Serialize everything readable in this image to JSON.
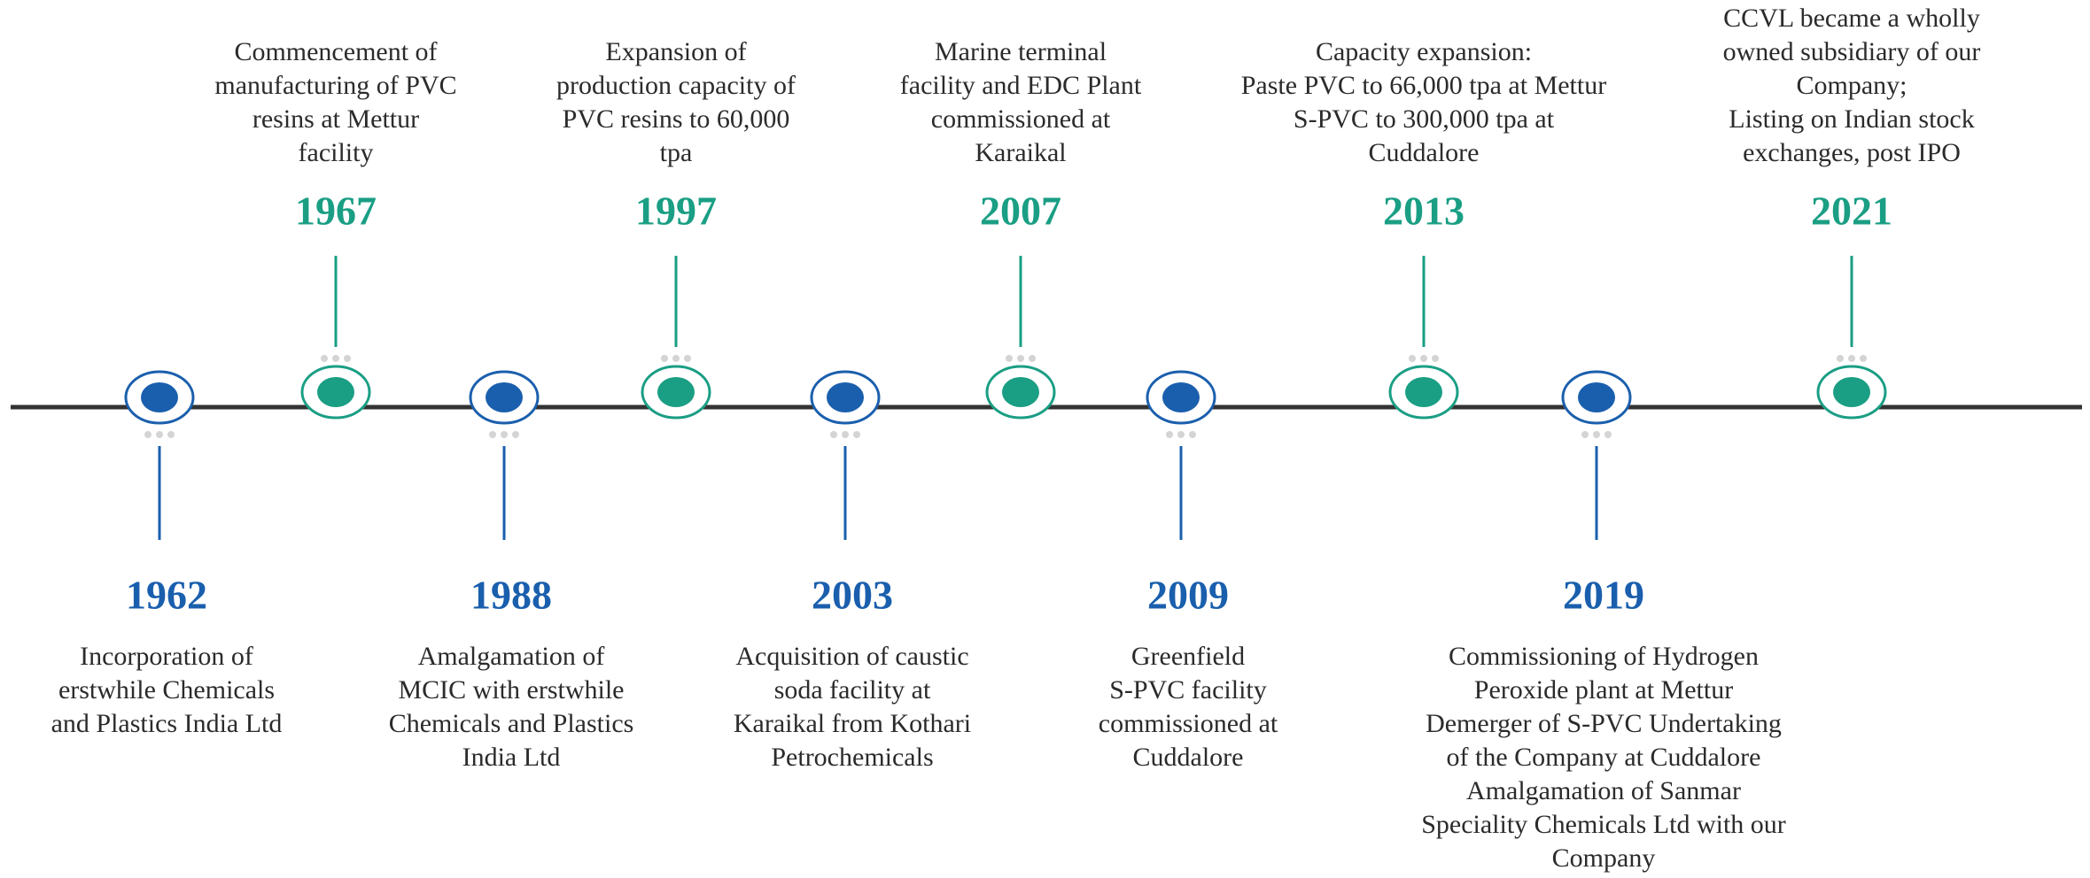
{
  "timeline": {
    "upper": [
      {
        "year": "1967",
        "description": [
          "Commencement of",
          "manufacturing of PVC",
          "resins at Mettur",
          "facility"
        ]
      },
      {
        "year": "1997",
        "description": [
          "Expansion of",
          "production capacity of",
          "PVC resins to 60,000",
          "tpa"
        ]
      },
      {
        "year": "2007",
        "description": [
          "Marine terminal",
          "facility and EDC Plant",
          "commissioned at",
          "Karaikal"
        ]
      },
      {
        "year": "2013",
        "description": [
          "Capacity expansion:",
          "Paste PVC to 66,000 tpa at Mettur",
          "S-PVC to 300,000 tpa at",
          "Cuddalore"
        ]
      },
      {
        "year": "2021",
        "description": [
          "CCVL became a wholly",
          "owned subsidiary of our",
          "Company;",
          "Listing on Indian stock",
          "exchanges, post IPO"
        ]
      }
    ],
    "lower": [
      {
        "year": "1962",
        "description": [
          "Incorporation of",
          "erstwhile Chemicals",
          "and Plastics India Ltd"
        ]
      },
      {
        "year": "1988",
        "description": [
          "Amalgamation of",
          "MCIC with erstwhile",
          "Chemicals and Plastics",
          "India Ltd"
        ]
      },
      {
        "year": "2003",
        "description": [
          "Acquisition of caustic",
          "soda facility at",
          "Karaikal from Kothari",
          "Petrochemicals"
        ]
      },
      {
        "year": "2009",
        "description": [
          "Greenfield",
          "S-PVC facility",
          "commissioned at",
          "Cuddalore"
        ]
      },
      {
        "year": "2019",
        "description": [
          "Commissioning of Hydrogen",
          "Peroxide plant at Mettur",
          "Demerger of S-PVC Undertaking",
          "of the Company at Cuddalore",
          "Amalgamation of Sanmar",
          "Speciality Chemicals Ltd with our",
          "Company"
        ]
      }
    ]
  }
}
